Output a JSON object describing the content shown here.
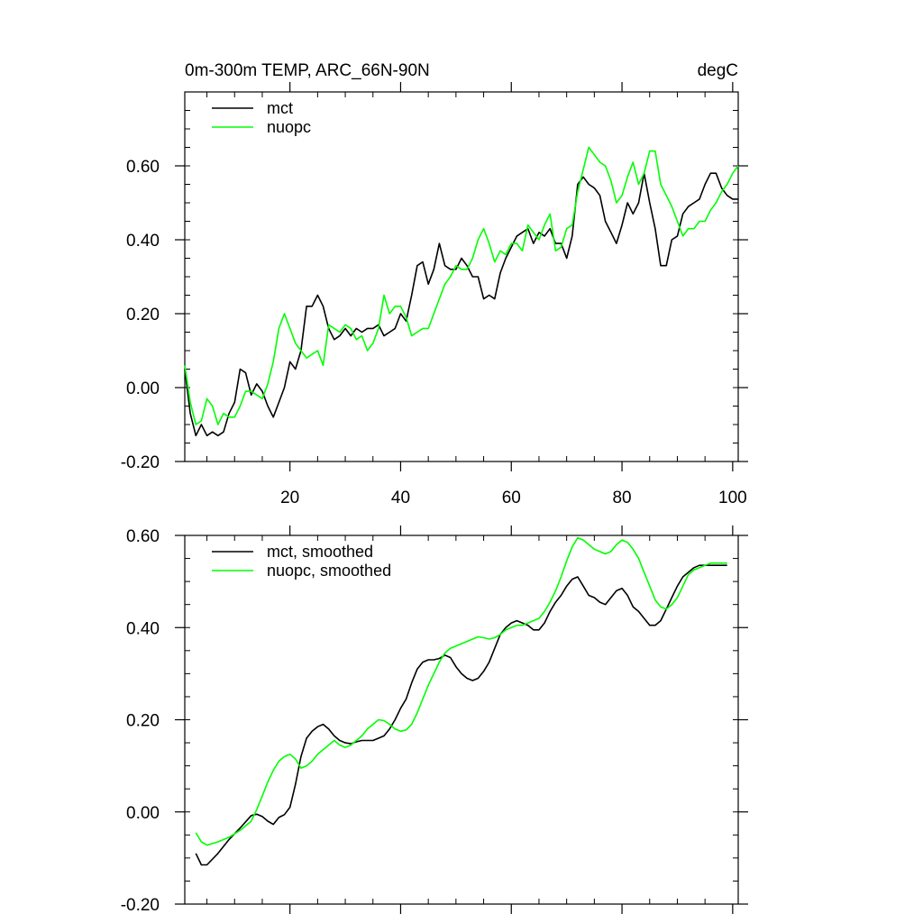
{
  "chart_data": [
    {
      "type": "line",
      "title_left": "0m-300m TEMP, ARC_66N-90N",
      "title_right": "degC",
      "xlim": [
        1,
        101
      ],
      "ylim": [
        -0.2,
        0.8
      ],
      "xticks": [
        20,
        40,
        60,
        80,
        100
      ],
      "xtick_labels": [
        "20",
        "40",
        "60",
        "80",
        "100"
      ],
      "yticks": [
        -0.2,
        0,
        0.2,
        0.4,
        0.6
      ],
      "ytick_labels": [
        "-0.20",
        "0.00",
        "0.20",
        "0.40",
        "0.60"
      ],
      "series": [
        {
          "name": "mct",
          "color": "#000000",
          "x": [
            1,
            2,
            3,
            4,
            5,
            6,
            7,
            8,
            9,
            10,
            11,
            12,
            13,
            14,
            15,
            16,
            17,
            18,
            19,
            20,
            21,
            22,
            23,
            24,
            25,
            26,
            27,
            28,
            29,
            30,
            31,
            32,
            33,
            34,
            35,
            36,
            37,
            38,
            39,
            40,
            41,
            42,
            43,
            44,
            45,
            46,
            47,
            48,
            49,
            50,
            51,
            52,
            53,
            54,
            55,
            56,
            57,
            58,
            59,
            60,
            61,
            62,
            63,
            64,
            65,
            66,
            67,
            68,
            69,
            70,
            71,
            72,
            73,
            74,
            75,
            76,
            77,
            78,
            79,
            80,
            81,
            82,
            83,
            84,
            85,
            86,
            87,
            88,
            89,
            90,
            91,
            92,
            93,
            94,
            95,
            96,
            97,
            98,
            99,
            100,
            101
          ],
          "values": [
            0.05,
            -0.07,
            -0.13,
            -0.1,
            -0.13,
            -0.12,
            -0.13,
            -0.12,
            -0.07,
            -0.04,
            0.05,
            0.04,
            -0.02,
            0.01,
            -0.01,
            -0.05,
            -0.08,
            -0.04,
            0.0,
            0.07,
            0.05,
            0.1,
            0.22,
            0.22,
            0.25,
            0.22,
            0.16,
            0.13,
            0.14,
            0.16,
            0.14,
            0.16,
            0.15,
            0.16,
            0.16,
            0.17,
            0.14,
            0.15,
            0.16,
            0.2,
            0.18,
            0.25,
            0.33,
            0.34,
            0.28,
            0.32,
            0.39,
            0.33,
            0.32,
            0.32,
            0.35,
            0.33,
            0.3,
            0.3,
            0.24,
            0.25,
            0.24,
            0.31,
            0.35,
            0.38,
            0.41,
            0.42,
            0.43,
            0.39,
            0.42,
            0.41,
            0.43,
            0.39,
            0.39,
            0.35,
            0.41,
            0.55,
            0.57,
            0.55,
            0.54,
            0.52,
            0.45,
            0.42,
            0.39,
            0.44,
            0.5,
            0.47,
            0.5,
            0.58,
            0.5,
            0.43,
            0.33,
            0.33,
            0.4,
            0.41,
            0.47,
            0.49,
            0.5,
            0.51,
            0.55,
            0.58,
            0.58,
            0.54,
            0.52,
            0.51,
            0.51
          ]
        },
        {
          "name": "nuopc",
          "color": "#00ff00",
          "x": [
            1,
            2,
            3,
            4,
            5,
            6,
            7,
            8,
            9,
            10,
            11,
            12,
            13,
            14,
            15,
            16,
            17,
            18,
            19,
            20,
            21,
            22,
            23,
            24,
            25,
            26,
            27,
            28,
            29,
            30,
            31,
            32,
            33,
            34,
            35,
            36,
            37,
            38,
            39,
            40,
            41,
            42,
            43,
            44,
            45,
            46,
            47,
            48,
            49,
            50,
            51,
            52,
            53,
            54,
            55,
            56,
            57,
            58,
            59,
            60,
            61,
            62,
            63,
            64,
            65,
            66,
            67,
            68,
            69,
            70,
            71,
            72,
            73,
            74,
            75,
            76,
            77,
            78,
            79,
            80,
            81,
            82,
            83,
            84,
            85,
            86,
            87,
            88,
            89,
            90,
            91,
            92,
            93,
            94,
            95,
            96,
            97,
            98,
            99,
            100,
            101
          ],
          "values": [
            0.06,
            -0.04,
            -0.1,
            -0.09,
            -0.03,
            -0.05,
            -0.1,
            -0.07,
            -0.08,
            -0.08,
            -0.05,
            -0.01,
            -0.01,
            -0.02,
            -0.03,
            0.01,
            0.07,
            0.16,
            0.2,
            0.16,
            0.12,
            0.1,
            0.08,
            0.09,
            0.1,
            0.06,
            0.17,
            0.16,
            0.15,
            0.17,
            0.16,
            0.13,
            0.14,
            0.1,
            0.12,
            0.16,
            0.25,
            0.2,
            0.22,
            0.22,
            0.19,
            0.14,
            0.15,
            0.16,
            0.16,
            0.2,
            0.24,
            0.28,
            0.3,
            0.33,
            0.32,
            0.32,
            0.35,
            0.4,
            0.43,
            0.39,
            0.34,
            0.37,
            0.36,
            0.39,
            0.39,
            0.37,
            0.44,
            0.42,
            0.4,
            0.44,
            0.47,
            0.37,
            0.38,
            0.43,
            0.44,
            0.53,
            0.59,
            0.65,
            0.63,
            0.61,
            0.6,
            0.56,
            0.5,
            0.52,
            0.57,
            0.61,
            0.55,
            0.58,
            0.64,
            0.64,
            0.55,
            0.52,
            0.49,
            0.45,
            0.41,
            0.43,
            0.43,
            0.45,
            0.45,
            0.48,
            0.5,
            0.53,
            0.55,
            0.58,
            0.6
          ]
        }
      ]
    },
    {
      "type": "line",
      "title_left": "",
      "title_right": "",
      "xlim": [
        1,
        101
      ],
      "ylim": [
        -0.2,
        0.6
      ],
      "xticks": [
        20,
        40,
        60,
        80,
        100
      ],
      "xtick_labels": [
        "",
        "",
        "",
        "",
        ""
      ],
      "yticks": [
        -0.2,
        0,
        0.2,
        0.4,
        0.6
      ],
      "ytick_labels": [
        "-0.20",
        "0.00",
        "0.20",
        "0.40",
        "0.60"
      ],
      "series": [
        {
          "name": "mct, smoothed",
          "color": "#000000",
          "x": [
            3,
            4,
            5,
            7,
            9,
            11,
            13,
            14,
            15,
            16,
            17,
            18,
            19,
            20,
            21,
            22,
            23,
            24,
            25,
            26,
            27,
            28,
            29,
            30,
            31,
            32,
            33,
            34,
            35,
            36,
            37,
            38,
            39,
            40,
            41,
            42,
            43,
            44,
            45,
            46,
            47,
            48,
            49,
            50,
            51,
            52,
            53,
            54,
            55,
            56,
            57,
            58,
            59,
            60,
            61,
            62,
            63,
            64,
            65,
            66,
            67,
            68,
            69,
            70,
            71,
            72,
            73,
            74,
            75,
            76,
            77,
            78,
            79,
            80,
            81,
            82,
            83,
            84,
            85,
            86,
            87,
            88,
            89,
            90,
            91,
            92,
            93,
            94,
            95,
            96,
            97,
            98,
            99
          ],
          "values": [
            -0.09,
            -0.115,
            -0.115,
            -0.09,
            -0.06,
            -0.035,
            -0.008,
            -0.005,
            -0.01,
            -0.02,
            -0.027,
            -0.012,
            -0.006,
            0.01,
            0.06,
            0.12,
            0.16,
            0.175,
            0.185,
            0.19,
            0.18,
            0.165,
            0.155,
            0.15,
            0.148,
            0.152,
            0.155,
            0.155,
            0.155,
            0.16,
            0.165,
            0.18,
            0.2,
            0.225,
            0.245,
            0.28,
            0.31,
            0.325,
            0.33,
            0.33,
            0.333,
            0.34,
            0.335,
            0.315,
            0.3,
            0.29,
            0.285,
            0.29,
            0.305,
            0.325,
            0.355,
            0.385,
            0.4,
            0.41,
            0.415,
            0.41,
            0.405,
            0.395,
            0.395,
            0.41,
            0.435,
            0.455,
            0.47,
            0.49,
            0.505,
            0.51,
            0.49,
            0.47,
            0.465,
            0.455,
            0.45,
            0.465,
            0.48,
            0.485,
            0.47,
            0.445,
            0.435,
            0.42,
            0.405,
            0.405,
            0.415,
            0.44,
            0.465,
            0.49,
            0.51,
            0.52,
            0.53,
            0.535,
            0.535,
            0.535,
            0.535,
            0.535,
            0.535
          ]
        },
        {
          "name": "nuopc, smoothed",
          "color": "#00ff00",
          "x": [
            3,
            4,
            5,
            7,
            9,
            11,
            13,
            14,
            15,
            16,
            17,
            18,
            19,
            20,
            21,
            22,
            23,
            24,
            25,
            26,
            27,
            28,
            29,
            30,
            31,
            32,
            33,
            34,
            35,
            36,
            37,
            38,
            39,
            40,
            41,
            42,
            43,
            44,
            45,
            46,
            47,
            48,
            49,
            50,
            51,
            52,
            53,
            54,
            55,
            56,
            57,
            58,
            59,
            60,
            61,
            62,
            63,
            64,
            65,
            66,
            67,
            68,
            69,
            70,
            71,
            72,
            73,
            74,
            75,
            76,
            77,
            78,
            79,
            80,
            81,
            82,
            83,
            84,
            85,
            86,
            87,
            88,
            89,
            90,
            91,
            92,
            93,
            94,
            95,
            96,
            97,
            98,
            99
          ],
          "values": [
            -0.045,
            -0.065,
            -0.072,
            -0.065,
            -0.055,
            -0.04,
            -0.02,
            0.005,
            0.035,
            0.065,
            0.09,
            0.11,
            0.12,
            0.125,
            0.115,
            0.095,
            0.1,
            0.11,
            0.125,
            0.135,
            0.145,
            0.155,
            0.145,
            0.14,
            0.145,
            0.155,
            0.165,
            0.18,
            0.19,
            0.2,
            0.198,
            0.19,
            0.18,
            0.175,
            0.178,
            0.19,
            0.215,
            0.245,
            0.275,
            0.3,
            0.325,
            0.345,
            0.355,
            0.36,
            0.365,
            0.37,
            0.375,
            0.38,
            0.378,
            0.375,
            0.378,
            0.385,
            0.395,
            0.4,
            0.405,
            0.405,
            0.41,
            0.415,
            0.42,
            0.435,
            0.455,
            0.48,
            0.51,
            0.545,
            0.575,
            0.595,
            0.59,
            0.58,
            0.57,
            0.565,
            0.56,
            0.565,
            0.58,
            0.59,
            0.585,
            0.57,
            0.55,
            0.52,
            0.49,
            0.46,
            0.445,
            0.44,
            0.45,
            0.465,
            0.49,
            0.515,
            0.525,
            0.53,
            0.535,
            0.54,
            0.54,
            0.54,
            0.54
          ]
        }
      ]
    }
  ]
}
